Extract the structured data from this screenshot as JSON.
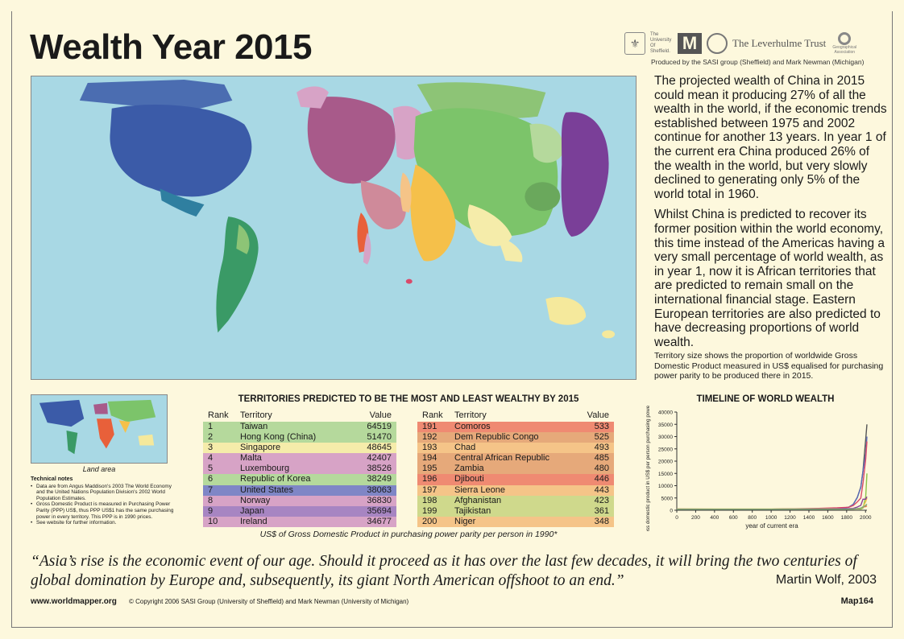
{
  "title": "Wealth Year 2015",
  "logos": {
    "seal_icon": "university-seal-icon",
    "sheffield": "The University Of Sheffield.",
    "michigan": "M",
    "leverhulme": "The Leverhulme Trust",
    "geographical": "Geographical Association"
  },
  "produced_by": "Produced by the SASI group (Sheffield) and Mark Newman (Michigan)",
  "body_paragraphs": [
    "The projected wealth of China in 2015 could mean it producing 27% of all the wealth in the world, if the economic trends established between 1975 and 2002 continue for another 13 years. In year 1 of the current era China produced 26% of the wealth in the world, but very slowly declined to generating only 5% of the world total in 1960.",
    "Whilst China is predicted to recover its former position within the world economy, this time instead of the Americas having a very small percentage of world wealth, as in year 1, now it is African territories that are predicted to remain small on the international financial stage. Eastern European territories are also predicted to have decreasing proportions of world wealth."
  ],
  "map_caption": "Territory size shows the proportion of worldwide Gross Domestic Product measured in US$ equalised for purchasing power parity to be produced there in 2015.",
  "land_area_label": "Land area",
  "technical_notes": {
    "heading": "Technical notes",
    "items": [
      "Data are from Angus Maddison's 2003 The World Economy and the United Nations Population Division's 2002 World Population Estimates.",
      "Gross Domestic Product is measured in Purchasing Power Parity (PPP) US$, thus PPP US$1 has the same purchasing power in every territory. This PPP is in 1990 prices.",
      "See website for further information."
    ]
  },
  "table": {
    "title": "TERRITORIES PREDICTED TO BE THE MOST AND LEAST WEALTHY BY 2015",
    "headers": {
      "rank": "Rank",
      "territory": "Territory",
      "value": "Value"
    },
    "most": [
      {
        "rank": "1",
        "territory": "Taiwan",
        "value": "64519",
        "color": "#b5d99c"
      },
      {
        "rank": "2",
        "territory": "Hong Kong (China)",
        "value": "51470",
        "color": "#b5d99c"
      },
      {
        "rank": "3",
        "territory": "Singapore",
        "value": "48645",
        "color": "#f5ecaa"
      },
      {
        "rank": "4",
        "territory": "Malta",
        "value": "42407",
        "color": "#d7a3c6"
      },
      {
        "rank": "5",
        "territory": "Luxembourg",
        "value": "38526",
        "color": "#d7a3c6"
      },
      {
        "rank": "6",
        "territory": "Republic of Korea",
        "value": "38249",
        "color": "#b5d99c"
      },
      {
        "rank": "7",
        "territory": "United States",
        "value": "38063",
        "color": "#7f86c6"
      },
      {
        "rank": "8",
        "territory": "Norway",
        "value": "36830",
        "color": "#d7a3c6"
      },
      {
        "rank": "9",
        "territory": "Japan",
        "value": "35694",
        "color": "#a785c2"
      },
      {
        "rank": "10",
        "territory": "Ireland",
        "value": "34677",
        "color": "#d7a3c6"
      }
    ],
    "least": [
      {
        "rank": "191",
        "territory": "Comoros",
        "value": "533",
        "color": "#ef8a72"
      },
      {
        "rank": "192",
        "territory": "Dem Republic Congo",
        "value": "525",
        "color": "#e6a97a"
      },
      {
        "rank": "193",
        "territory": "Chad",
        "value": "493",
        "color": "#f5c488"
      },
      {
        "rank": "194",
        "territory": "Central African Republic",
        "value": "485",
        "color": "#e6a97a"
      },
      {
        "rank": "195",
        "territory": "Zambia",
        "value": "480",
        "color": "#e6a97a"
      },
      {
        "rank": "196",
        "territory": "Djibouti",
        "value": "446",
        "color": "#ef8a72"
      },
      {
        "rank": "197",
        "territory": "Sierra Leone",
        "value": "443",
        "color": "#f5c488"
      },
      {
        "rank": "198",
        "territory": "Afghanistan",
        "value": "423",
        "color": "#cfd98c"
      },
      {
        "rank": "199",
        "territory": "Tajikistan",
        "value": "361",
        "color": "#cfd98c"
      },
      {
        "rank": "200",
        "territory": "Niger",
        "value": "348",
        "color": "#f5c488"
      }
    ],
    "note": "US$ of Gross Domestic Product in purchasing power parity per person in 1990*"
  },
  "chart_data": {
    "type": "line",
    "title": "TIMELINE OF WORLD WEALTH",
    "xlabel": "year of current era",
    "ylabel": "annual gross domestic product in US$ per person purchasing power parity by region",
    "x_ticks": [
      "0",
      "200",
      "400",
      "600",
      "800",
      "1000",
      "1200",
      "1400",
      "1600",
      "1800",
      "2000"
    ],
    "y_ticks": [
      "0",
      "5000",
      "10000",
      "15000",
      "20000",
      "25000",
      "30000",
      "35000",
      "40000"
    ],
    "xlim": [
      0,
      2015
    ],
    "ylim": [
      0,
      40000
    ],
    "x": [
      0,
      1000,
      1500,
      1600,
      1700,
      1820,
      1870,
      1913,
      1950,
      1973,
      2002,
      2015
    ],
    "series": [
      {
        "color": "#555555",
        "values": [
          450,
          430,
          620,
          650,
          700,
          1200,
          2400,
          5200,
          9500,
          16000,
          29000,
          35000
        ]
      },
      {
        "color": "#5a6bb8",
        "values": [
          400,
          400,
          400,
          400,
          530,
          1250,
          2400,
          5300,
          9300,
          16000,
          23000,
          30000
        ]
      },
      {
        "color": "#d94a6a",
        "values": [
          450,
          420,
          770,
          890,
          1000,
          1200,
          1900,
          3400,
          5000,
          11000,
          21000,
          28000
        ]
      },
      {
        "color": "#8bc34a",
        "values": [
          450,
          450,
          600,
          600,
          600,
          600,
          540,
          550,
          450,
          900,
          5500,
          15000
        ]
      },
      {
        "color": "#f2c14e",
        "values": [
          450,
          450,
          550,
          560,
          570,
          580,
          550,
          650,
          800,
          1300,
          3500,
          5000
        ]
      },
      {
        "color": "#8a3f98",
        "values": [
          400,
          420,
          500,
          520,
          570,
          670,
          740,
          1300,
          2000,
          4500,
          4500,
          5500
        ]
      },
      {
        "color": "#e8734a",
        "values": [
          430,
          430,
          420,
          420,
          420,
          420,
          500,
          600,
          850,
          1300,
          1500,
          1800
        ]
      },
      {
        "color": "#7fb07f",
        "values": [
          400,
          400,
          410,
          420,
          420,
          420,
          500,
          700,
          900,
          1400,
          2000,
          2500
        ]
      }
    ]
  },
  "quote": "“Asia’s rise is the economic event of our age. Should it proceed as it has over the last few decades, it will bring the two centuries of global domination by Europe and, subsequently, its giant North American offshoot to an end.”",
  "quote_author": "Martin Wolf, 2003",
  "footer": {
    "url": "www.worldmapper.org",
    "copyright": "© Copyright 2006 SASI Group (University of Sheffield) and Mark Newman (University of Michigan)",
    "map_id": "Map164"
  },
  "map_regions": {
    "north_america": "#3b5ba8",
    "central_america": "#2f7fa0",
    "south_america": "#3a9a66",
    "western_europe": "#a85a8a",
    "eastern_europe": "#d7a3c6",
    "middle_east": "#cf8a9a",
    "china": "#7cc46a",
    "east_asia": "#6aa85c",
    "japan": "#7a3f98",
    "south_asia": "#f5c04a",
    "southeast_asia": "#f5ecaa",
    "africa": "#e8603a",
    "oceania": "#f5e99c",
    "ocean": "#a8d8e4"
  }
}
